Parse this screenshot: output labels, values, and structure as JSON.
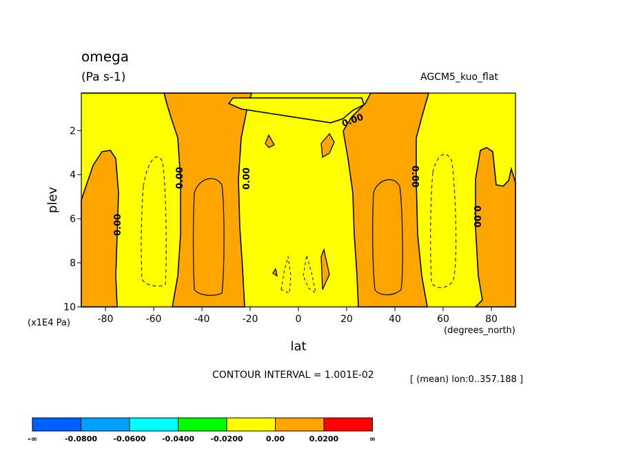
{
  "chart_data": {
    "type": "contour",
    "title": "omega",
    "units": "(Pa s-1)",
    "dataset": "AGCM5_kuo_flat",
    "xlabel": "lat",
    "x_units": "(degrees_north)",
    "ylabel": "plev",
    "y_units": "(x1E4 Pa)",
    "x_range": [
      -90,
      90
    ],
    "y_range": [
      0.3,
      10
    ],
    "y_inverted": true,
    "x_ticks": [
      -80,
      -60,
      -40,
      -20,
      0,
      20,
      40,
      60,
      80
    ],
    "x_tick_labels": [
      "-80",
      "-60",
      "-40",
      "-20",
      "0",
      "20",
      "40",
      "60",
      "80"
    ],
    "y_ticks": [
      2,
      4,
      6,
      8,
      10
    ],
    "y_tick_labels": [
      "2",
      "4",
      "6",
      "8",
      "10"
    ],
    "contour_interval_text": "CONTOUR INTERVAL = 1.001E-02",
    "contour_labels": [
      "0.00",
      "0.00",
      "0.00",
      "0.00",
      "0.00",
      "0.00"
    ],
    "averaging_note": "[ (mean) lon:0..357.188 ]",
    "colorbar": {
      "levels": [
        -0.08,
        -0.06,
        -0.04,
        -0.02,
        0.0,
        0.02
      ],
      "colors": [
        "#0060ff",
        "#00a0ff",
        "#00ffff",
        "#00ff00",
        "#ffff00",
        "#ffa500",
        "#ff0000"
      ],
      "tick_labels": [
        "-∞",
        "-0.0800",
        "-0.0600",
        "-0.0400",
        "-0.0200",
        "0.00",
        "0.0200",
        "∞"
      ]
    },
    "regions": [
      {
        "fill": "#ffa500",
        "lat": [
          -90,
          -78
        ],
        "plev": [
          3,
          10
        ],
        "sign": "positive"
      },
      {
        "fill": "#ffa500",
        "lat": [
          -52,
          -25
        ],
        "plev": [
          0.3,
          10
        ],
        "sign": "positive"
      },
      {
        "fill": "#ffa500",
        "lat": [
          25,
          52
        ],
        "plev": [
          0.3,
          10
        ],
        "sign": "positive"
      },
      {
        "fill": "#ffa500",
        "lat": [
          75,
          90
        ],
        "plev": [
          3,
          10
        ],
        "sign": "positive"
      },
      {
        "fill": "#ffff00",
        "lat": [
          -25,
          25
        ],
        "plev": [
          0.3,
          10
        ],
        "sign": "negative"
      }
    ]
  }
}
